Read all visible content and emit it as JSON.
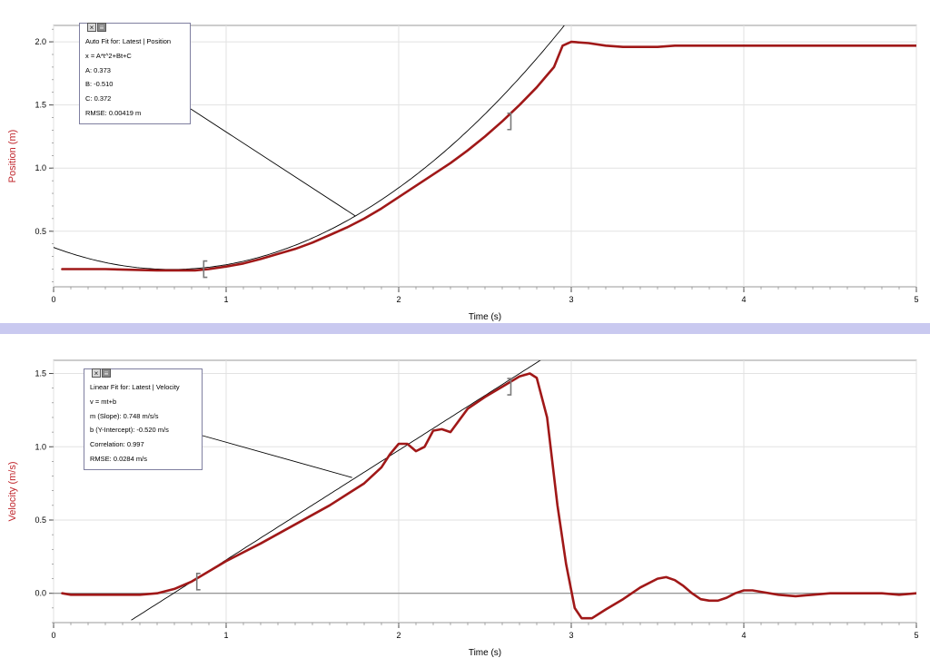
{
  "chart_data": [
    {
      "type": "line",
      "xlabel": "Time (s)",
      "ylabel": "Position (m)",
      "xlim": [
        0,
        5
      ],
      "ylim": [
        0.06,
        2.13
      ],
      "x_ticks": [
        "0",
        "1",
        "2",
        "3",
        "4",
        "5"
      ],
      "y_ticks": [
        "0.5",
        "1.0",
        "1.5",
        "2.0"
      ],
      "grid": true,
      "series": [
        {
          "color": "#a01818",
          "x": [
            0.05,
            0.3,
            0.6,
            0.82,
            0.9,
            1.0,
            1.1,
            1.2,
            1.3,
            1.4,
            1.5,
            1.6,
            1.7,
            1.8,
            1.9,
            2.0,
            2.1,
            2.2,
            2.3,
            2.4,
            2.5,
            2.6,
            2.7,
            2.8,
            2.85,
            2.9,
            2.95,
            3.0,
            3.1,
            3.2,
            3.3,
            3.4,
            3.5,
            3.6,
            3.7,
            3.8,
            3.9,
            4.0,
            4.2,
            4.5,
            4.8,
            5.0
          ],
          "y": [
            0.2,
            0.2,
            0.19,
            0.19,
            0.2,
            0.22,
            0.245,
            0.28,
            0.32,
            0.36,
            0.41,
            0.47,
            0.53,
            0.6,
            0.68,
            0.77,
            0.86,
            0.95,
            1.04,
            1.14,
            1.25,
            1.37,
            1.5,
            1.64,
            1.72,
            1.8,
            1.97,
            2.0,
            1.99,
            1.97,
            1.96,
            1.96,
            1.96,
            1.97,
            1.97,
            1.97,
            1.97,
            1.97,
            1.97,
            1.97,
            1.97,
            1.97
          ]
        }
      ],
      "fit": {
        "color": "#000000",
        "A": 0.373,
        "B": -0.51,
        "C": 0.372,
        "fit_range": [
          0.87,
          2.65
        ],
        "x_range": [
          0,
          3.02
        ]
      },
      "annotation": {
        "buttons": [
          "×",
          "≡"
        ],
        "lines": [
          "Auto Fit for: Latest | Position",
          "x = A*t^2+Bt+C",
          "A: 0.373",
          "B: -0.510",
          "C: 0.372",
          "RMSE: 0.00419 m"
        ],
        "leader_to": [
          1.75,
          0.62
        ]
      }
    },
    {
      "type": "line",
      "xlabel": "Time (s)",
      "ylabel": "Velocity (m/s)",
      "xlim": [
        0,
        5
      ],
      "ylim": [
        -0.2,
        1.59
      ],
      "x_ticks": [
        "0",
        "1",
        "2",
        "3",
        "4",
        "5"
      ],
      "y_ticks": [
        "0.0",
        "0.5",
        "1.0",
        "1.5"
      ],
      "grid": true,
      "zero_line": true,
      "series": [
        {
          "color": "#a01818",
          "x": [
            0.05,
            0.1,
            0.3,
            0.5,
            0.6,
            0.7,
            0.8,
            0.9,
            1.0,
            1.2,
            1.4,
            1.6,
            1.8,
            1.9,
            1.95,
            2.0,
            2.05,
            2.1,
            2.15,
            2.2,
            2.25,
            2.3,
            2.4,
            2.5,
            2.6,
            2.7,
            2.76,
            2.8,
            2.86,
            2.92,
            2.97,
            3.02,
            3.06,
            3.12,
            3.2,
            3.3,
            3.4,
            3.5,
            3.55,
            3.6,
            3.65,
            3.7,
            3.75,
            3.8,
            3.85,
            3.9,
            3.95,
            4.0,
            4.05,
            4.1,
            4.2,
            4.3,
            4.4,
            4.5,
            4.6,
            4.7,
            4.8,
            4.9,
            5.0
          ],
          "y": [
            0.0,
            -0.01,
            -0.01,
            -0.01,
            0.0,
            0.03,
            0.08,
            0.15,
            0.22,
            0.34,
            0.47,
            0.6,
            0.75,
            0.86,
            0.95,
            1.02,
            1.02,
            0.97,
            1.0,
            1.11,
            1.12,
            1.1,
            1.26,
            1.34,
            1.41,
            1.48,
            1.5,
            1.47,
            1.2,
            0.6,
            0.2,
            -0.1,
            -0.17,
            -0.17,
            -0.11,
            -0.04,
            0.04,
            0.1,
            0.11,
            0.09,
            0.05,
            0.0,
            -0.04,
            -0.05,
            -0.05,
            -0.03,
            0.0,
            0.02,
            0.02,
            0.01,
            -0.01,
            -0.02,
            -0.01,
            0.0,
            0.0,
            0.0,
            0.0,
            -0.01,
            0.0
          ]
        }
      ],
      "fit": {
        "color": "#000000",
        "m": 0.748,
        "b": -0.52,
        "fit_range": [
          0.83,
          2.65
        ],
        "x_range": [
          0.45,
          2.83
        ]
      },
      "annotation": {
        "buttons": [
          "×",
          "≡"
        ],
        "lines": [
          "Linear Fit for: Latest | Velocity",
          "v = mt+b",
          "m (Slope): 0.748 m/s/s",
          "b (Y-Intercept): -0.520 m/s",
          "Correlation: 0.997",
          "RMSE: 0.0284 m/s"
        ],
        "leader_to": [
          1.73,
          0.79
        ]
      }
    }
  ]
}
